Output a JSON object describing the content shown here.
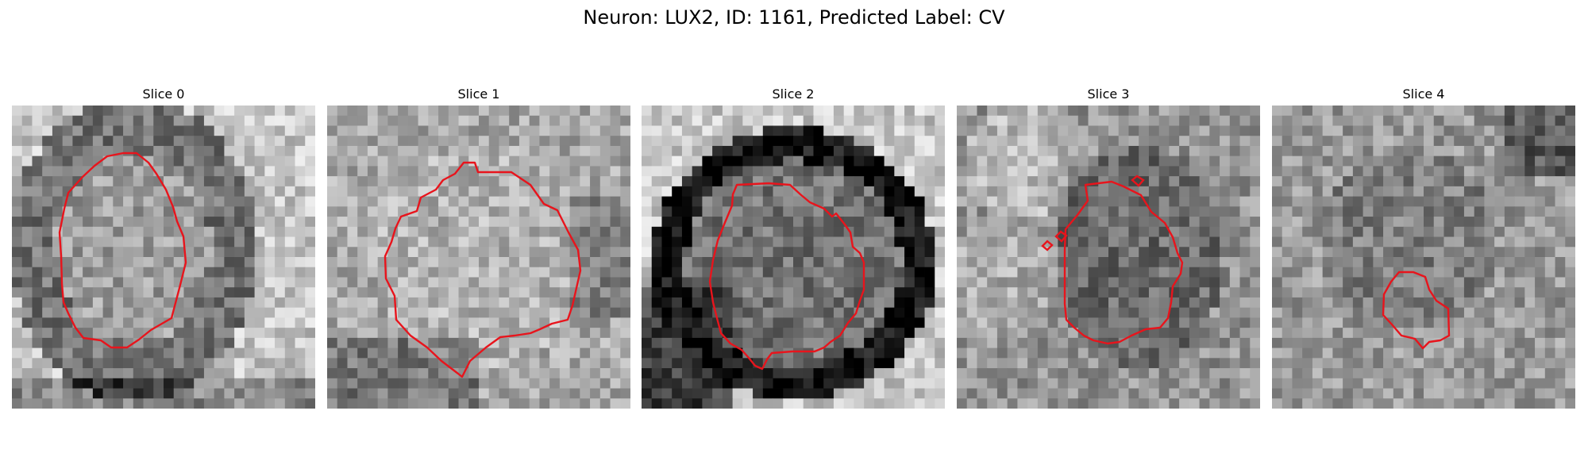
{
  "figure": {
    "title": "Neuron: LUX2, ID: 1161, Predicted Label: CV"
  },
  "panels": [
    {
      "title": "Slice 0",
      "contour_color": "#e8141c"
    },
    {
      "title": "Slice 1",
      "contour_color": "#e8141c"
    },
    {
      "title": "Slice 2",
      "contour_color": "#e8141c"
    },
    {
      "title": "Slice 3",
      "contour_color": "#e8141c"
    },
    {
      "title": "Slice 4",
      "contour_color": "#e8141c"
    }
  ]
}
